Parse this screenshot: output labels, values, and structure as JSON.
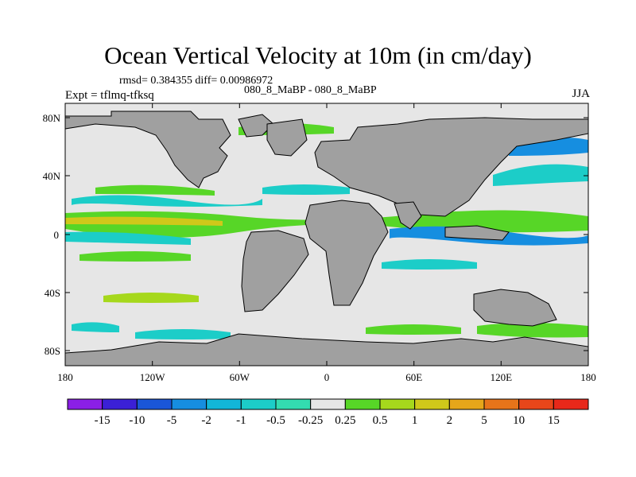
{
  "title": "Ocean Vertical Velocity at 10m (in cm/day)",
  "stats": "rmsd= 0.384355 diff= 0.00986972",
  "case_label": "080_8_MaBP - 080_8_MaBP",
  "expt_label": "Expt = tflmq-tfksq",
  "season": "JJA",
  "colors": {
    "land": "#a0a0a0",
    "background": "#e6e6e6",
    "frame": "#000000"
  },
  "lat_ticks": [
    "80N",
    "40N",
    "0",
    "40S",
    "80S"
  ],
  "lon_ticks": [
    "180",
    "120W",
    "60W",
    "0",
    "60E",
    "120E",
    "180"
  ],
  "colorbar": {
    "labels": [
      "-15",
      "-10",
      "-5",
      "-2",
      "-1",
      "-0.5",
      "-0.25",
      "0.25",
      "0.5",
      "1",
      "2",
      "5",
      "10",
      "15"
    ],
    "colors": [
      "#8b1fe6",
      "#3b20d6",
      "#1a56d8",
      "#168ee0",
      "#12b6d8",
      "#1ccdc8",
      "#33dcb0",
      "#e6e6e6",
      "#57d627",
      "#a6d81c",
      "#d0c81a",
      "#e6a61a",
      "#e7741a",
      "#e8461a",
      "#e8281a"
    ]
  }
}
